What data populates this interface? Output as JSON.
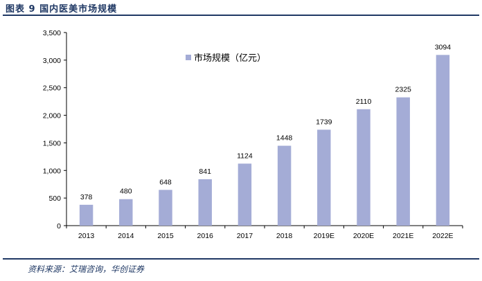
{
  "figure": {
    "title": "图表 9   国内医美市场规模",
    "source": "资料来源：艾瑞咨询，华创证券"
  },
  "colors": {
    "bar": "#a4acd6",
    "axis": "#000000",
    "header_rule": "#1f3864"
  },
  "chart_data": {
    "type": "bar",
    "categories": [
      "2013",
      "2014",
      "2015",
      "2016",
      "2017",
      "2018",
      "2019E",
      "2020E",
      "2021E",
      "2022E"
    ],
    "series": [
      {
        "name": "市场规模（亿元）",
        "values": [
          378,
          480,
          648,
          841,
          1124,
          1448,
          1739,
          2110,
          2325,
          3094
        ]
      }
    ],
    "value_labels": [
      "378",
      "480",
      "648",
      "841",
      "1124",
      "1448",
      "1739",
      "2110",
      "2325",
      "3094"
    ],
    "ylim": [
      0,
      3500
    ],
    "yticks": [
      0,
      500,
      1000,
      1500,
      2000,
      2500,
      3000,
      3500
    ],
    "ytick_labels": [
      "0",
      "500",
      "1,000",
      "1,500",
      "2,000",
      "2,500",
      "3,000",
      "3,500"
    ],
    "legend_position": "top-center",
    "grid": false
  }
}
